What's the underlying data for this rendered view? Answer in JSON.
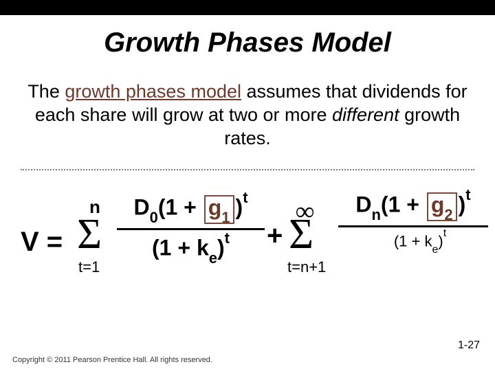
{
  "colors": {
    "top_bar": "#000000",
    "background": "#ffffff",
    "text": "#000000",
    "accent": "#6b3a2a",
    "box_border": "#7a4a3a",
    "divider": "#7a7a7a"
  },
  "title": "Growth Phases Model",
  "body": {
    "prefix": "The ",
    "term": "growth phases model",
    "mid": " assumes that dividends for each share will grow at two or more ",
    "italic_word": "different",
    "suffix": " growth rates."
  },
  "formula": {
    "lhs": "V =",
    "plus": "+",
    "sigma1": {
      "top": "n",
      "bottom": "t=1"
    },
    "sigma2": {
      "top": "∞",
      "bottom": "t=n+1"
    },
    "term1": {
      "num_D": "D",
      "num_D_sub": "0",
      "num_open": "(1 + ",
      "g": "g",
      "g_sub": "1",
      "num_close": ")",
      "num_sup": "t",
      "den_open": "(1 + k",
      "den_k_sub": "e",
      "den_close": ")",
      "den_sup": "t"
    },
    "term2": {
      "num_D": "D",
      "num_D_sub": "n",
      "num_open": "(1 + ",
      "g": "g",
      "g_sub": "2",
      "num_close": ")",
      "num_sup": "t",
      "den_open": "(1 + k",
      "den_k_sub": "e",
      "den_close": ")",
      "den_sup": "t"
    }
  },
  "footer": {
    "copyright": "Copyright © 2011 Pearson Prentice Hall. All rights reserved.",
    "page": "1-27"
  }
}
